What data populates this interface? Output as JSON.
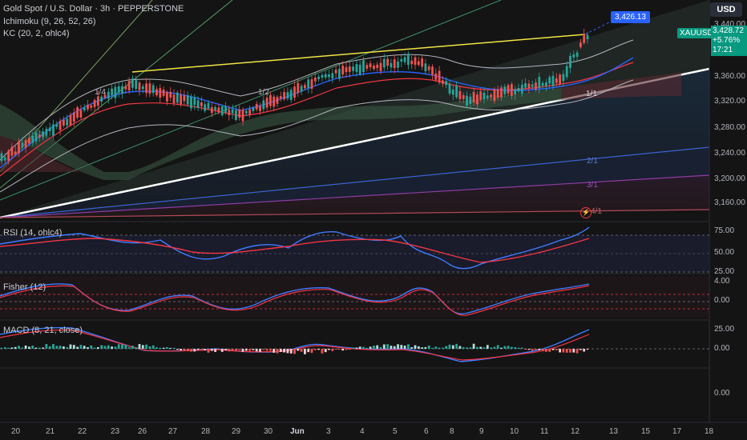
{
  "header": {
    "symbol_title": "Gold Spot / U.S. Dollar · 3h · PEPPERSTONE",
    "indicator_ichimoku": "Ichimoku (9, 26, 52, 26)",
    "indicator_kc": "KC (20, 2, ohlc4)",
    "currency": "USD"
  },
  "price_tags": {
    "target_price": "3,426.13",
    "symbol": "XAUUSD",
    "last_price": "3,428.72",
    "change_pct": "+5.76%",
    "countdown": "17:21"
  },
  "price_axis": [
    "3,440.00",
    "3,400.00",
    "3,360.00",
    "3,320.00",
    "3,280.00",
    "3,240.00",
    "3,200.00",
    "3,160.00"
  ],
  "fan_labels": [
    "1/4",
    "1/3",
    "1/2",
    "1/1",
    "2/1",
    "3/1",
    "4/1"
  ],
  "panes": {
    "rsi": {
      "label": "RSI (14, ohlc4)",
      "ticks": [
        "75.00",
        "50.00",
        "25.00"
      ]
    },
    "fisher": {
      "label": "Fisher (12)",
      "ticks": [
        "4.00",
        "0.00"
      ]
    },
    "macd": {
      "label": "MACD (8, 21, close)",
      "ticks": [
        "25.00",
        "0.00"
      ]
    },
    "empty_tick": "0.00"
  },
  "time_axis": [
    "20",
    "21",
    "22",
    "23",
    "26",
    "27",
    "28",
    "29",
    "30",
    "Jun",
    "3",
    "4",
    "5",
    "6",
    "8",
    "9",
    "10",
    "11",
    "12",
    "13",
    "15",
    "17",
    "18"
  ],
  "colors": {
    "background": "#141414",
    "up": "#26a69a",
    "down": "#ef5350",
    "trendline": "#ffffff",
    "resistance": "#f0e442",
    "blue": "#2962ff",
    "red": "#f23645"
  }
}
